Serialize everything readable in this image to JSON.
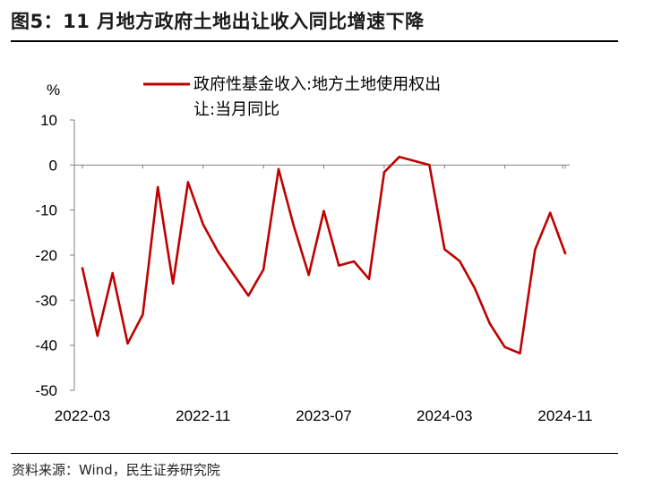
{
  "header": {
    "title": "图5：11 月地方政府土地出让收入同比增速下降"
  },
  "footer": {
    "source": "资料来源：Wind，民生证券研究院"
  },
  "colors": {
    "series": "#c00000",
    "axis": "#808080",
    "rule": "#000000"
  },
  "chart_data": {
    "type": "line",
    "title": "",
    "ylabel": "%",
    "xlabel": "",
    "ylim": [
      -50,
      10
    ],
    "yticks": [
      10,
      0,
      -10,
      -20,
      -30,
      -40,
      -50
    ],
    "xticks": [
      "2022-03",
      "2022-11",
      "2023-07",
      "2024-03",
      "2024-11"
    ],
    "grid": false,
    "legend": {
      "position": "top",
      "line1": "政府性基金收入:地方土地使用权出",
      "line2": "让:当月同比"
    },
    "x": [
      "2022-03",
      "2022-04",
      "2022-05",
      "2022-06",
      "2022-07",
      "2022-08",
      "2022-09",
      "2022-10",
      "2022-11",
      "2022-12",
      "2023-01",
      "2023-02",
      "2023-03",
      "2023-04",
      "2023-05",
      "2023-06",
      "2023-07",
      "2023-08",
      "2023-09",
      "2023-10",
      "2023-11",
      "2023-12",
      "2024-01",
      "2024-02",
      "2024-03",
      "2024-04",
      "2024-05",
      "2024-06",
      "2024-07",
      "2024-08",
      "2024-09",
      "2024-10",
      "2024-11"
    ],
    "series": [
      {
        "name": "政府性基金收入:地方土地使用权出让:当月同比",
        "values": [
          -22.9,
          -37.9,
          -24.0,
          -39.6,
          -33.2,
          -4.9,
          -26.3,
          -3.8,
          -13.2,
          -19.3,
          -24.2,
          -29.0,
          -23.2,
          -0.9,
          -13.4,
          -24.4,
          -10.2,
          -22.3,
          -21.4,
          -25.3,
          -1.6,
          1.8,
          0.9,
          0.0,
          -18.7,
          -21.3,
          -27.3,
          -35.2,
          -40.4,
          -41.8,
          -18.8,
          -10.6,
          -19.6
        ]
      }
    ]
  }
}
